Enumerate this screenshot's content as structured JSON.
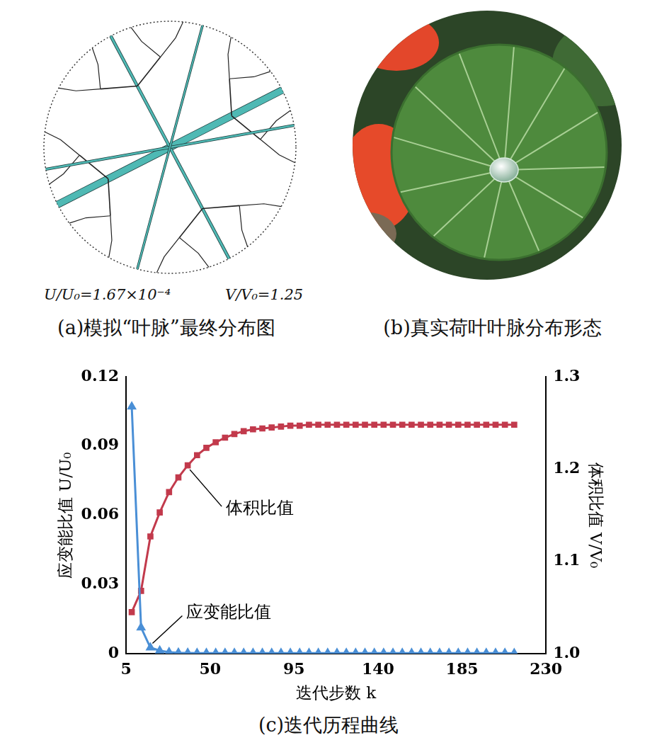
{
  "panels": [
    {
      "caption": "(a)模拟“叶脉”最终分布图",
      "annotations": [
        "U/U₀=1.67×10⁻⁴",
        "V/V₀=1.25"
      ]
    },
    {
      "caption": "(b)真实荷叶叶脉分布形态"
    }
  ],
  "chart_data": {
    "type": "line",
    "caption": "(c)迭代历程曲线",
    "x_label": "迭代步数 k",
    "y_label": "应变能比值 U/U₀",
    "y2_label": "体积比值 V/V₀",
    "x": [
      8,
      13,
      18,
      23,
      28,
      33,
      38,
      43,
      48,
      53,
      58,
      63,
      68,
      73,
      78,
      83,
      88,
      93,
      98,
      103,
      108,
      113,
      118,
      123,
      128,
      133,
      138,
      143,
      148,
      153,
      158,
      163,
      168,
      173,
      178,
      183,
      188,
      193,
      198,
      203,
      208,
      213
    ],
    "xlim": [
      5,
      230
    ],
    "xticks": [
      5,
      50,
      95,
      140,
      185,
      230
    ],
    "ylim": [
      0,
      0.12
    ],
    "yticks": [
      0,
      0.03,
      0.06,
      0.09,
      0.12
    ],
    "y2lim": [
      1,
      1.3
    ],
    "y2ticks": [
      {
        "value": 1,
        "label": "1.0"
      },
      1.1,
      1.2,
      1.3
    ],
    "grid": false,
    "series": [
      {
        "name": "应变能比值",
        "color": "#4a8fd6",
        "marker": "triangle",
        "values": [
          0.107,
          0.0113,
          0.0026,
          0.0013,
          0.0006,
          0.0004,
          0.0003,
          0.0002,
          0.0002,
          0.0002,
          0.0002,
          0.0002,
          0.0002,
          0.0002,
          0.0002,
          0.0002,
          0.0002,
          0.0002,
          0.0002,
          0.0002,
          0.0002,
          0.0002,
          0.0002,
          0.0002,
          0.0002,
          0.0002,
          0.0002,
          0.0002,
          0.0002,
          0.0002,
          0.0002,
          0.0002,
          0.0002,
          0.0002,
          0.0002,
          0.0002,
          0.0002,
          0.0002,
          0.0002,
          0.0002,
          0.0002,
          0.000167
        ]
      },
      {
        "name": "体积比值",
        "color": "#c23a4c",
        "marker": "square",
        "axis": "y2",
        "values": [
          1.045,
          1.068,
          1.127,
          1.153,
          1.175,
          1.191,
          1.204,
          1.215,
          1.223,
          1.229,
          1.234,
          1.238,
          1.241,
          1.243,
          1.244,
          1.245,
          1.246,
          1.247,
          1.247,
          1.248,
          1.248,
          1.248,
          1.248,
          1.248,
          1.248,
          1.248,
          1.248,
          1.248,
          1.248,
          1.248,
          1.248,
          1.248,
          1.248,
          1.248,
          1.248,
          1.248,
          1.248,
          1.248,
          1.248,
          1.248,
          1.248,
          1.248
        ]
      }
    ]
  }
}
